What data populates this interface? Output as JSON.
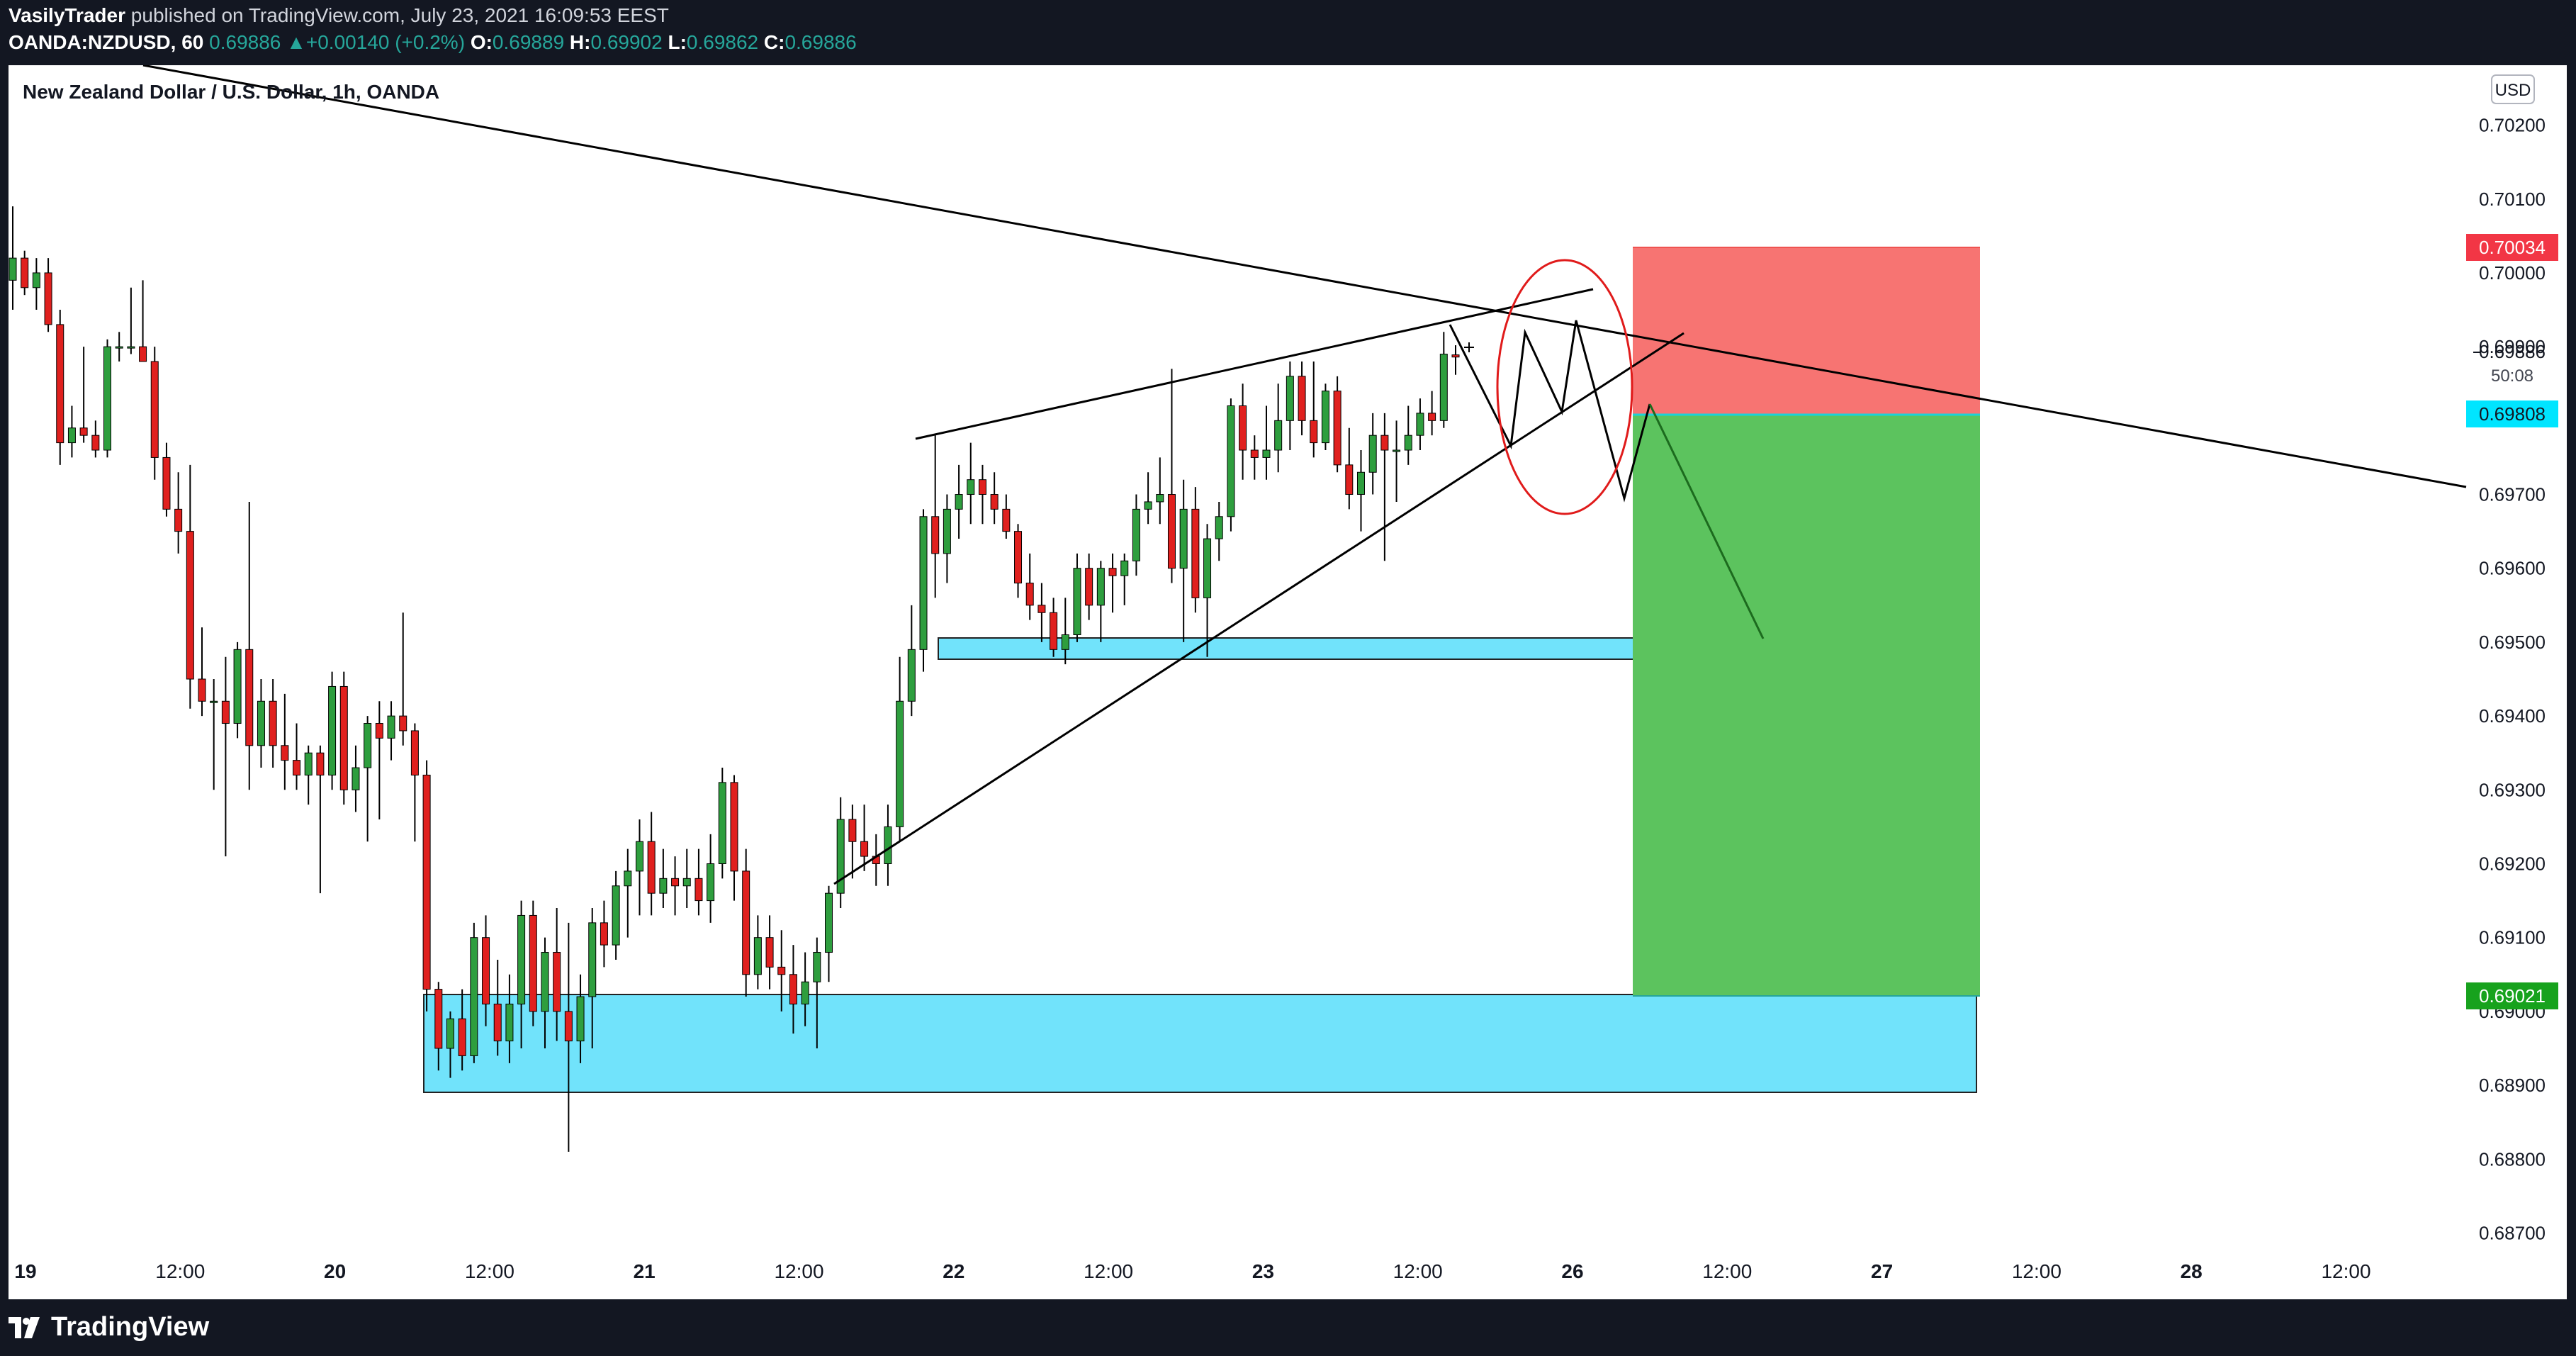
{
  "header": {
    "author": "VasilyTrader",
    "published_text": "published on TradingView.com, July 23, 2021 16:09:53 EEST",
    "symbol": "OANDA:NZDUSD, 60",
    "last": "0.69886",
    "change": "+0.00140 (+0.2%)",
    "o_label": "O:",
    "o_value": "0.69889",
    "h_label": "H:",
    "h_value": "0.69902",
    "l_label": "L:",
    "l_value": "0.69862",
    "c_label": "C:",
    "c_value": "0.69886"
  },
  "footer": {
    "brand": "TradingView"
  },
  "chart_data": {
    "type": "candlestick",
    "title": "New Zealand Dollar / U.S. Dollar, 1h, OANDA",
    "currency": "USD",
    "y_ticks": [
      "0.70200",
      "0.70100",
      "0.70000",
      "0.69900",
      "0.69800",
      "0.69700",
      "0.69600",
      "0.69500",
      "0.69400",
      "0.69300",
      "0.69200",
      "0.69100",
      "0.69000",
      "0.68900",
      "0.68800",
      "0.68700"
    ],
    "x_ticks": [
      "19",
      "12:00",
      "20",
      "12:00",
      "21",
      "12:00",
      "22",
      "12:00",
      "23",
      "12:00",
      "26",
      "12:00",
      "27",
      "12:00",
      "28",
      "12:00"
    ],
    "price_labels": {
      "stop": "0.70034",
      "current": "0.69886",
      "countdown": "50:08",
      "entry": "0.69808",
      "target": "0.69021"
    },
    "colors": {
      "up": "#26a69a",
      "down": "#ef5350",
      "candle_up": "#2e9e3e",
      "candle_down": "#e0201e",
      "zone": "#71e3fb",
      "stop_zone": "#f77472",
      "profit_zone": "#5cc35e"
    },
    "candles": [
      [
        0.6999,
        0.7009,
        0.6995,
        0.7002
      ],
      [
        0.7002,
        0.7003,
        0.6997,
        0.6998
      ],
      [
        0.6998,
        0.7002,
        0.6995,
        0.7
      ],
      [
        0.7,
        0.7002,
        0.6992,
        0.6993
      ],
      [
        0.6993,
        0.6995,
        0.6974,
        0.6977
      ],
      [
        0.6977,
        0.6982,
        0.6975,
        0.6979
      ],
      [
        0.6979,
        0.699,
        0.6977,
        0.6978
      ],
      [
        0.6978,
        0.698,
        0.6975,
        0.6976
      ],
      [
        0.6976,
        0.6991,
        0.6975,
        0.699
      ],
      [
        0.699,
        0.6992,
        0.6988,
        0.699
      ],
      [
        0.699,
        0.6998,
        0.6989,
        0.699
      ],
      [
        0.699,
        0.6999,
        0.6988,
        0.6988
      ],
      [
        0.6988,
        0.699,
        0.6972,
        0.6975
      ],
      [
        0.6975,
        0.6977,
        0.6967,
        0.6968
      ],
      [
        0.6968,
        0.6973,
        0.6962,
        0.6965
      ],
      [
        0.6965,
        0.6974,
        0.6941,
        0.6945
      ],
      [
        0.6945,
        0.6952,
        0.694,
        0.6942
      ],
      [
        0.6942,
        0.6945,
        0.693,
        0.6942
      ],
      [
        0.6942,
        0.6948,
        0.6921,
        0.6939
      ],
      [
        0.6939,
        0.695,
        0.6937,
        0.6949
      ],
      [
        0.6949,
        0.6969,
        0.693,
        0.6936
      ],
      [
        0.6936,
        0.6945,
        0.6933,
        0.6942
      ],
      [
        0.6942,
        0.6945,
        0.6933,
        0.6936
      ],
      [
        0.6936,
        0.6943,
        0.693,
        0.6934
      ],
      [
        0.6934,
        0.6939,
        0.693,
        0.6932
      ],
      [
        0.6932,
        0.6936,
        0.6928,
        0.6935
      ],
      [
        0.6935,
        0.6936,
        0.6916,
        0.6932
      ],
      [
        0.6932,
        0.6946,
        0.693,
        0.6944
      ],
      [
        0.6944,
        0.6946,
        0.6928,
        0.693
      ],
      [
        0.693,
        0.6936,
        0.6927,
        0.6933
      ],
      [
        0.6933,
        0.694,
        0.6923,
        0.6939
      ],
      [
        0.6939,
        0.6942,
        0.6926,
        0.6937
      ],
      [
        0.6937,
        0.6942,
        0.6934,
        0.694
      ],
      [
        0.694,
        0.6954,
        0.6936,
        0.6938
      ],
      [
        0.6938,
        0.6939,
        0.6923,
        0.6932
      ],
      [
        0.6932,
        0.6934,
        0.69,
        0.6903
      ],
      [
        0.6903,
        0.6904,
        0.6892,
        0.6895
      ],
      [
        0.6895,
        0.69,
        0.6891,
        0.6899
      ],
      [
        0.6899,
        0.6903,
        0.6892,
        0.6894
      ],
      [
        0.6894,
        0.6912,
        0.6893,
        0.691
      ],
      [
        0.691,
        0.6913,
        0.6898,
        0.6901
      ],
      [
        0.6901,
        0.6907,
        0.6894,
        0.6896
      ],
      [
        0.6896,
        0.6905,
        0.6893,
        0.6901
      ],
      [
        0.6901,
        0.6915,
        0.6895,
        0.6913
      ],
      [
        0.6913,
        0.6915,
        0.6898,
        0.69
      ],
      [
        0.69,
        0.691,
        0.6895,
        0.6908
      ],
      [
        0.6908,
        0.6914,
        0.6896,
        0.69
      ],
      [
        0.69,
        0.6912,
        0.6881,
        0.6896
      ],
      [
        0.6896,
        0.6905,
        0.6893,
        0.6902
      ],
      [
        0.6902,
        0.6914,
        0.6895,
        0.6912
      ],
      [
        0.6912,
        0.6915,
        0.6906,
        0.6909
      ],
      [
        0.6909,
        0.6919,
        0.6907,
        0.6917
      ],
      [
        0.6917,
        0.6922,
        0.691,
        0.6919
      ],
      [
        0.6919,
        0.6926,
        0.6913,
        0.6923
      ],
      [
        0.6923,
        0.6927,
        0.6913,
        0.6916
      ],
      [
        0.6916,
        0.6922,
        0.6914,
        0.6918
      ],
      [
        0.6918,
        0.6921,
        0.6913,
        0.6917
      ],
      [
        0.6917,
        0.6922,
        0.6914,
        0.6918
      ],
      [
        0.6918,
        0.6922,
        0.6913,
        0.6915
      ],
      [
        0.6915,
        0.6924,
        0.6912,
        0.692
      ],
      [
        0.692,
        0.6933,
        0.6918,
        0.6931
      ],
      [
        0.6931,
        0.6932,
        0.6915,
        0.6919
      ],
      [
        0.6919,
        0.6922,
        0.6902,
        0.6905
      ],
      [
        0.6905,
        0.6913,
        0.6903,
        0.691
      ],
      [
        0.691,
        0.6913,
        0.6903,
        0.6906
      ],
      [
        0.6906,
        0.6911,
        0.69,
        0.6905
      ],
      [
        0.6905,
        0.6909,
        0.6897,
        0.6901
      ],
      [
        0.6901,
        0.6908,
        0.6898,
        0.6904
      ],
      [
        0.6904,
        0.691,
        0.6895,
        0.6908
      ],
      [
        0.6908,
        0.6917,
        0.6904,
        0.6916
      ],
      [
        0.6916,
        0.6929,
        0.6914,
        0.6926
      ],
      [
        0.6926,
        0.6928,
        0.6918,
        0.6923
      ],
      [
        0.6923,
        0.6928,
        0.6919,
        0.6921
      ],
      [
        0.6921,
        0.6924,
        0.6917,
        0.692
      ],
      [
        0.692,
        0.6928,
        0.6917,
        0.6925
      ],
      [
        0.6925,
        0.6948,
        0.6923,
        0.6942
      ],
      [
        0.6942,
        0.6955,
        0.694,
        0.6949
      ],
      [
        0.6949,
        0.6968,
        0.6946,
        0.6967
      ],
      [
        0.6967,
        0.6978,
        0.6956,
        0.6962
      ],
      [
        0.6962,
        0.697,
        0.6958,
        0.6968
      ],
      [
        0.6968,
        0.6974,
        0.6964,
        0.697
      ],
      [
        0.697,
        0.6977,
        0.6966,
        0.6972
      ],
      [
        0.6972,
        0.6974,
        0.6966,
        0.697
      ],
      [
        0.697,
        0.6973,
        0.6966,
        0.6968
      ],
      [
        0.6968,
        0.697,
        0.6964,
        0.6965
      ],
      [
        0.6965,
        0.6966,
        0.6956,
        0.6958
      ],
      [
        0.6958,
        0.6962,
        0.6953,
        0.6955
      ],
      [
        0.6955,
        0.6958,
        0.695,
        0.6954
      ],
      [
        0.6954,
        0.6956,
        0.6948,
        0.6949
      ],
      [
        0.6949,
        0.6956,
        0.6947,
        0.6951
      ],
      [
        0.6951,
        0.6962,
        0.695,
        0.696
      ],
      [
        0.696,
        0.6962,
        0.6953,
        0.6955
      ],
      [
        0.6955,
        0.6961,
        0.695,
        0.696
      ],
      [
        0.696,
        0.6962,
        0.6954,
        0.6959
      ],
      [
        0.6959,
        0.6962,
        0.6955,
        0.6961
      ],
      [
        0.6961,
        0.697,
        0.6959,
        0.6968
      ],
      [
        0.6968,
        0.6973,
        0.6966,
        0.6969
      ],
      [
        0.6969,
        0.6975,
        0.6966,
        0.697
      ],
      [
        0.697,
        0.6987,
        0.6958,
        0.696
      ],
      [
        0.696,
        0.6972,
        0.695,
        0.6968
      ],
      [
        0.6968,
        0.6971,
        0.6954,
        0.6956
      ],
      [
        0.6956,
        0.6966,
        0.6948,
        0.6964
      ],
      [
        0.6964,
        0.6969,
        0.6961,
        0.6967
      ],
      [
        0.6967,
        0.6983,
        0.6965,
        0.6982
      ],
      [
        0.6982,
        0.6985,
        0.6972,
        0.6976
      ],
      [
        0.6976,
        0.6978,
        0.6972,
        0.6975
      ],
      [
        0.6975,
        0.6982,
        0.6972,
        0.6976
      ],
      [
        0.6976,
        0.6985,
        0.6973,
        0.698
      ],
      [
        0.698,
        0.6988,
        0.6976,
        0.6986
      ],
      [
        0.6986,
        0.6988,
        0.6978,
        0.698
      ],
      [
        0.698,
        0.6988,
        0.6975,
        0.6977
      ],
      [
        0.6977,
        0.6985,
        0.6976,
        0.6984
      ],
      [
        0.6984,
        0.6986,
        0.6973,
        0.6974
      ],
      [
        0.6974,
        0.6979,
        0.6968,
        0.697
      ],
      [
        0.697,
        0.6976,
        0.6965,
        0.6973
      ],
      [
        0.6973,
        0.6981,
        0.697,
        0.6978
      ],
      [
        0.6978,
        0.6981,
        0.6961,
        0.6976
      ],
      [
        0.6976,
        0.698,
        0.6969,
        0.6976
      ],
      [
        0.6976,
        0.6982,
        0.6974,
        0.6978
      ],
      [
        0.6978,
        0.6983,
        0.6976,
        0.6981
      ],
      [
        0.6981,
        0.6984,
        0.6978,
        0.698
      ],
      [
        0.698,
        0.6992,
        0.6979,
        0.6989
      ],
      [
        0.69889,
        0.69902,
        0.69862,
        0.69886
      ]
    ]
  }
}
